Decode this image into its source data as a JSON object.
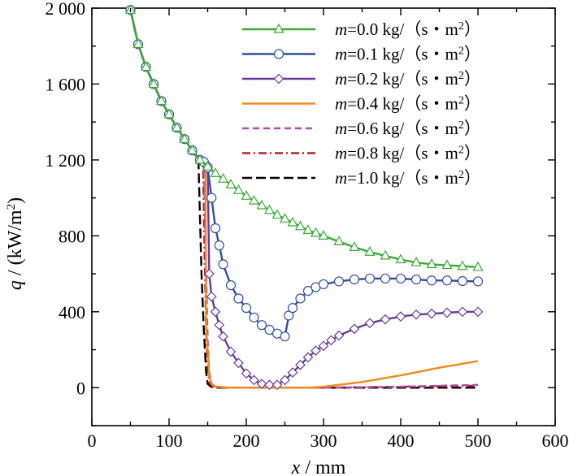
{
  "chart_data": {
    "type": "line",
    "title": "",
    "xlabel": {
      "var": "x",
      "rest": " / mm"
    },
    "ylabel": {
      "var": "q",
      "rest": " / (kW/m",
      "sup": "2",
      "close": ")"
    },
    "xlim": [
      0,
      600
    ],
    "ylim": [
      -200,
      2000
    ],
    "xticks": [
      0,
      100,
      200,
      300,
      400,
      500,
      600
    ],
    "yticks": [
      0,
      400,
      800,
      1200,
      1600,
      2000
    ],
    "ytick_labels": [
      "0",
      "400",
      "800",
      "1 200",
      "1 600",
      "2 000"
    ],
    "grid": false,
    "legend_position": "top-right",
    "series": [
      {
        "name": "m=0.0 kg/（s・m²）",
        "label_var": "m",
        "label_rest": "=0.0 kg/（s・m",
        "label_sup": "2",
        "label_close": "）",
        "color": "#3aaa35",
        "dash": "",
        "marker": "triangle",
        "x": [
          50,
          60,
          70,
          80,
          90,
          100,
          110,
          120,
          130,
          140,
          150,
          160,
          170,
          180,
          190,
          200,
          210,
          220,
          230,
          240,
          250,
          260,
          270,
          280,
          290,
          300,
          320,
          340,
          360,
          380,
          400,
          420,
          440,
          460,
          480,
          500
        ],
        "y": [
          1990,
          1810,
          1690,
          1600,
          1510,
          1440,
          1370,
          1310,
          1250,
          1200,
          1165,
          1130,
          1100,
          1070,
          1040,
          1010,
          985,
          960,
          935,
          910,
          890,
          870,
          850,
          830,
          815,
          800,
          770,
          740,
          715,
          695,
          675,
          660,
          650,
          645,
          640,
          635
        ]
      },
      {
        "name": "m=0.1 kg/（s・m²）",
        "label_var": "m",
        "label_rest": "=0.1 kg/（s・m",
        "label_sup": "2",
        "label_close": "）",
        "color": "#2e4fa2",
        "dash": "",
        "marker": "circle",
        "x": [
          50,
          60,
          70,
          80,
          90,
          100,
          110,
          120,
          130,
          140,
          145,
          150,
          155,
          160,
          165,
          170,
          180,
          190,
          200,
          210,
          220,
          230,
          240,
          250,
          255,
          260,
          270,
          280,
          290,
          300,
          320,
          340,
          360,
          380,
          400,
          420,
          440,
          460,
          480,
          500
        ],
        "y": [
          1990,
          1810,
          1690,
          1600,
          1510,
          1440,
          1370,
          1310,
          1250,
          1200,
          1190,
          1160,
          1000,
          840,
          750,
          650,
          540,
          470,
          420,
          370,
          330,
          305,
          285,
          270,
          380,
          420,
          470,
          510,
          530,
          545,
          560,
          570,
          575,
          575,
          575,
          570,
          565,
          565,
          562,
          560
        ]
      },
      {
        "name": "m=0.2 kg/（s・m²）",
        "label_var": "m",
        "label_rest": "=0.2 kg/（s・m",
        "label_sup": "2",
        "label_close": "）",
        "color": "#6a3a9a",
        "dash": "",
        "marker": "diamond",
        "x": [
          50,
          60,
          70,
          80,
          90,
          100,
          110,
          120,
          130,
          140,
          145,
          150,
          152,
          155,
          160,
          165,
          170,
          180,
          190,
          200,
          210,
          220,
          230,
          240,
          250,
          260,
          270,
          280,
          290,
          300,
          310,
          320,
          340,
          360,
          380,
          400,
          420,
          440,
          460,
          480,
          500
        ],
        "y": [
          1990,
          1810,
          1690,
          1600,
          1510,
          1440,
          1370,
          1310,
          1250,
          1200,
          1190,
          1170,
          600,
          480,
          400,
          330,
          270,
          190,
          130,
          75,
          40,
          20,
          15,
          15,
          40,
          80,
          120,
          160,
          195,
          220,
          250,
          275,
          310,
          340,
          360,
          375,
          385,
          390,
          395,
          400,
          400
        ]
      },
      {
        "name": "m=0.4 kg/（s・m²）",
        "label_var": "m",
        "label_rest": "=0.4 kg/（s・m",
        "label_sup": "2",
        "label_close": "）",
        "color": "#f08a1c",
        "dash": "",
        "marker": "none",
        "x": [
          50,
          60,
          70,
          80,
          90,
          100,
          110,
          120,
          130,
          140,
          145,
          147,
          148,
          150,
          152,
          155,
          160,
          180,
          200,
          250,
          280,
          300,
          350,
          400,
          450,
          500
        ],
        "y": [
          1990,
          1810,
          1690,
          1600,
          1510,
          1440,
          1370,
          1310,
          1250,
          1200,
          1190,
          1180,
          320,
          200,
          60,
          20,
          5,
          0,
          0,
          0,
          0,
          5,
          30,
          65,
          105,
          140
        ]
      },
      {
        "name": "m=0.6 kg/（s・m²）",
        "label_var": "m",
        "label_rest": "=0.6 kg/（s・m",
        "label_sup": "2",
        "label_close": "）",
        "color": "#b04ab0",
        "dash": "8,5",
        "marker": "none",
        "x": [
          50,
          60,
          70,
          80,
          90,
          100,
          110,
          120,
          130,
          140,
          145,
          148,
          150,
          152,
          155,
          160,
          180,
          200,
          250,
          300,
          350,
          400,
          450,
          500
        ],
        "y": [
          1990,
          1810,
          1690,
          1600,
          1510,
          1440,
          1370,
          1310,
          1250,
          1200,
          1180,
          600,
          250,
          80,
          20,
          5,
          0,
          0,
          0,
          0,
          2,
          5,
          10,
          15
        ]
      },
      {
        "name": "m=0.8 kg/（s・m²）",
        "label_var": "m",
        "label_rest": "=0.8 kg/（s・m",
        "label_sup": "2",
        "label_close": "）",
        "color": "#b8201f",
        "dash": "10,4,2,4",
        "marker": "none",
        "x": [
          50,
          60,
          70,
          80,
          90,
          100,
          110,
          120,
          130,
          140,
          144,
          146,
          148,
          150,
          152,
          155,
          160,
          180,
          200,
          300,
          400,
          500
        ],
        "y": [
          1990,
          1810,
          1690,
          1600,
          1510,
          1440,
          1370,
          1310,
          1250,
          1200,
          1180,
          700,
          300,
          100,
          30,
          10,
          3,
          0,
          0,
          0,
          5,
          10
        ]
      },
      {
        "name": "m=1.0 kg/（s・m²）",
        "label_var": "m",
        "label_rest": "=1.0 kg/（s・m",
        "label_sup": "2",
        "label_close": "）",
        "color": "#000000",
        "dash": "12,5",
        "marker": "none",
        "x": [
          50,
          60,
          70,
          80,
          90,
          100,
          110,
          120,
          130,
          135,
          138,
          140,
          142,
          145,
          148,
          150,
          155,
          160,
          200,
          300,
          400,
          500
        ],
        "y": [
          1990,
          1810,
          1690,
          1600,
          1510,
          1440,
          1370,
          1310,
          1250,
          1220,
          1200,
          900,
          600,
          300,
          80,
          20,
          3,
          0,
          0,
          0,
          0,
          0
        ]
      }
    ]
  }
}
